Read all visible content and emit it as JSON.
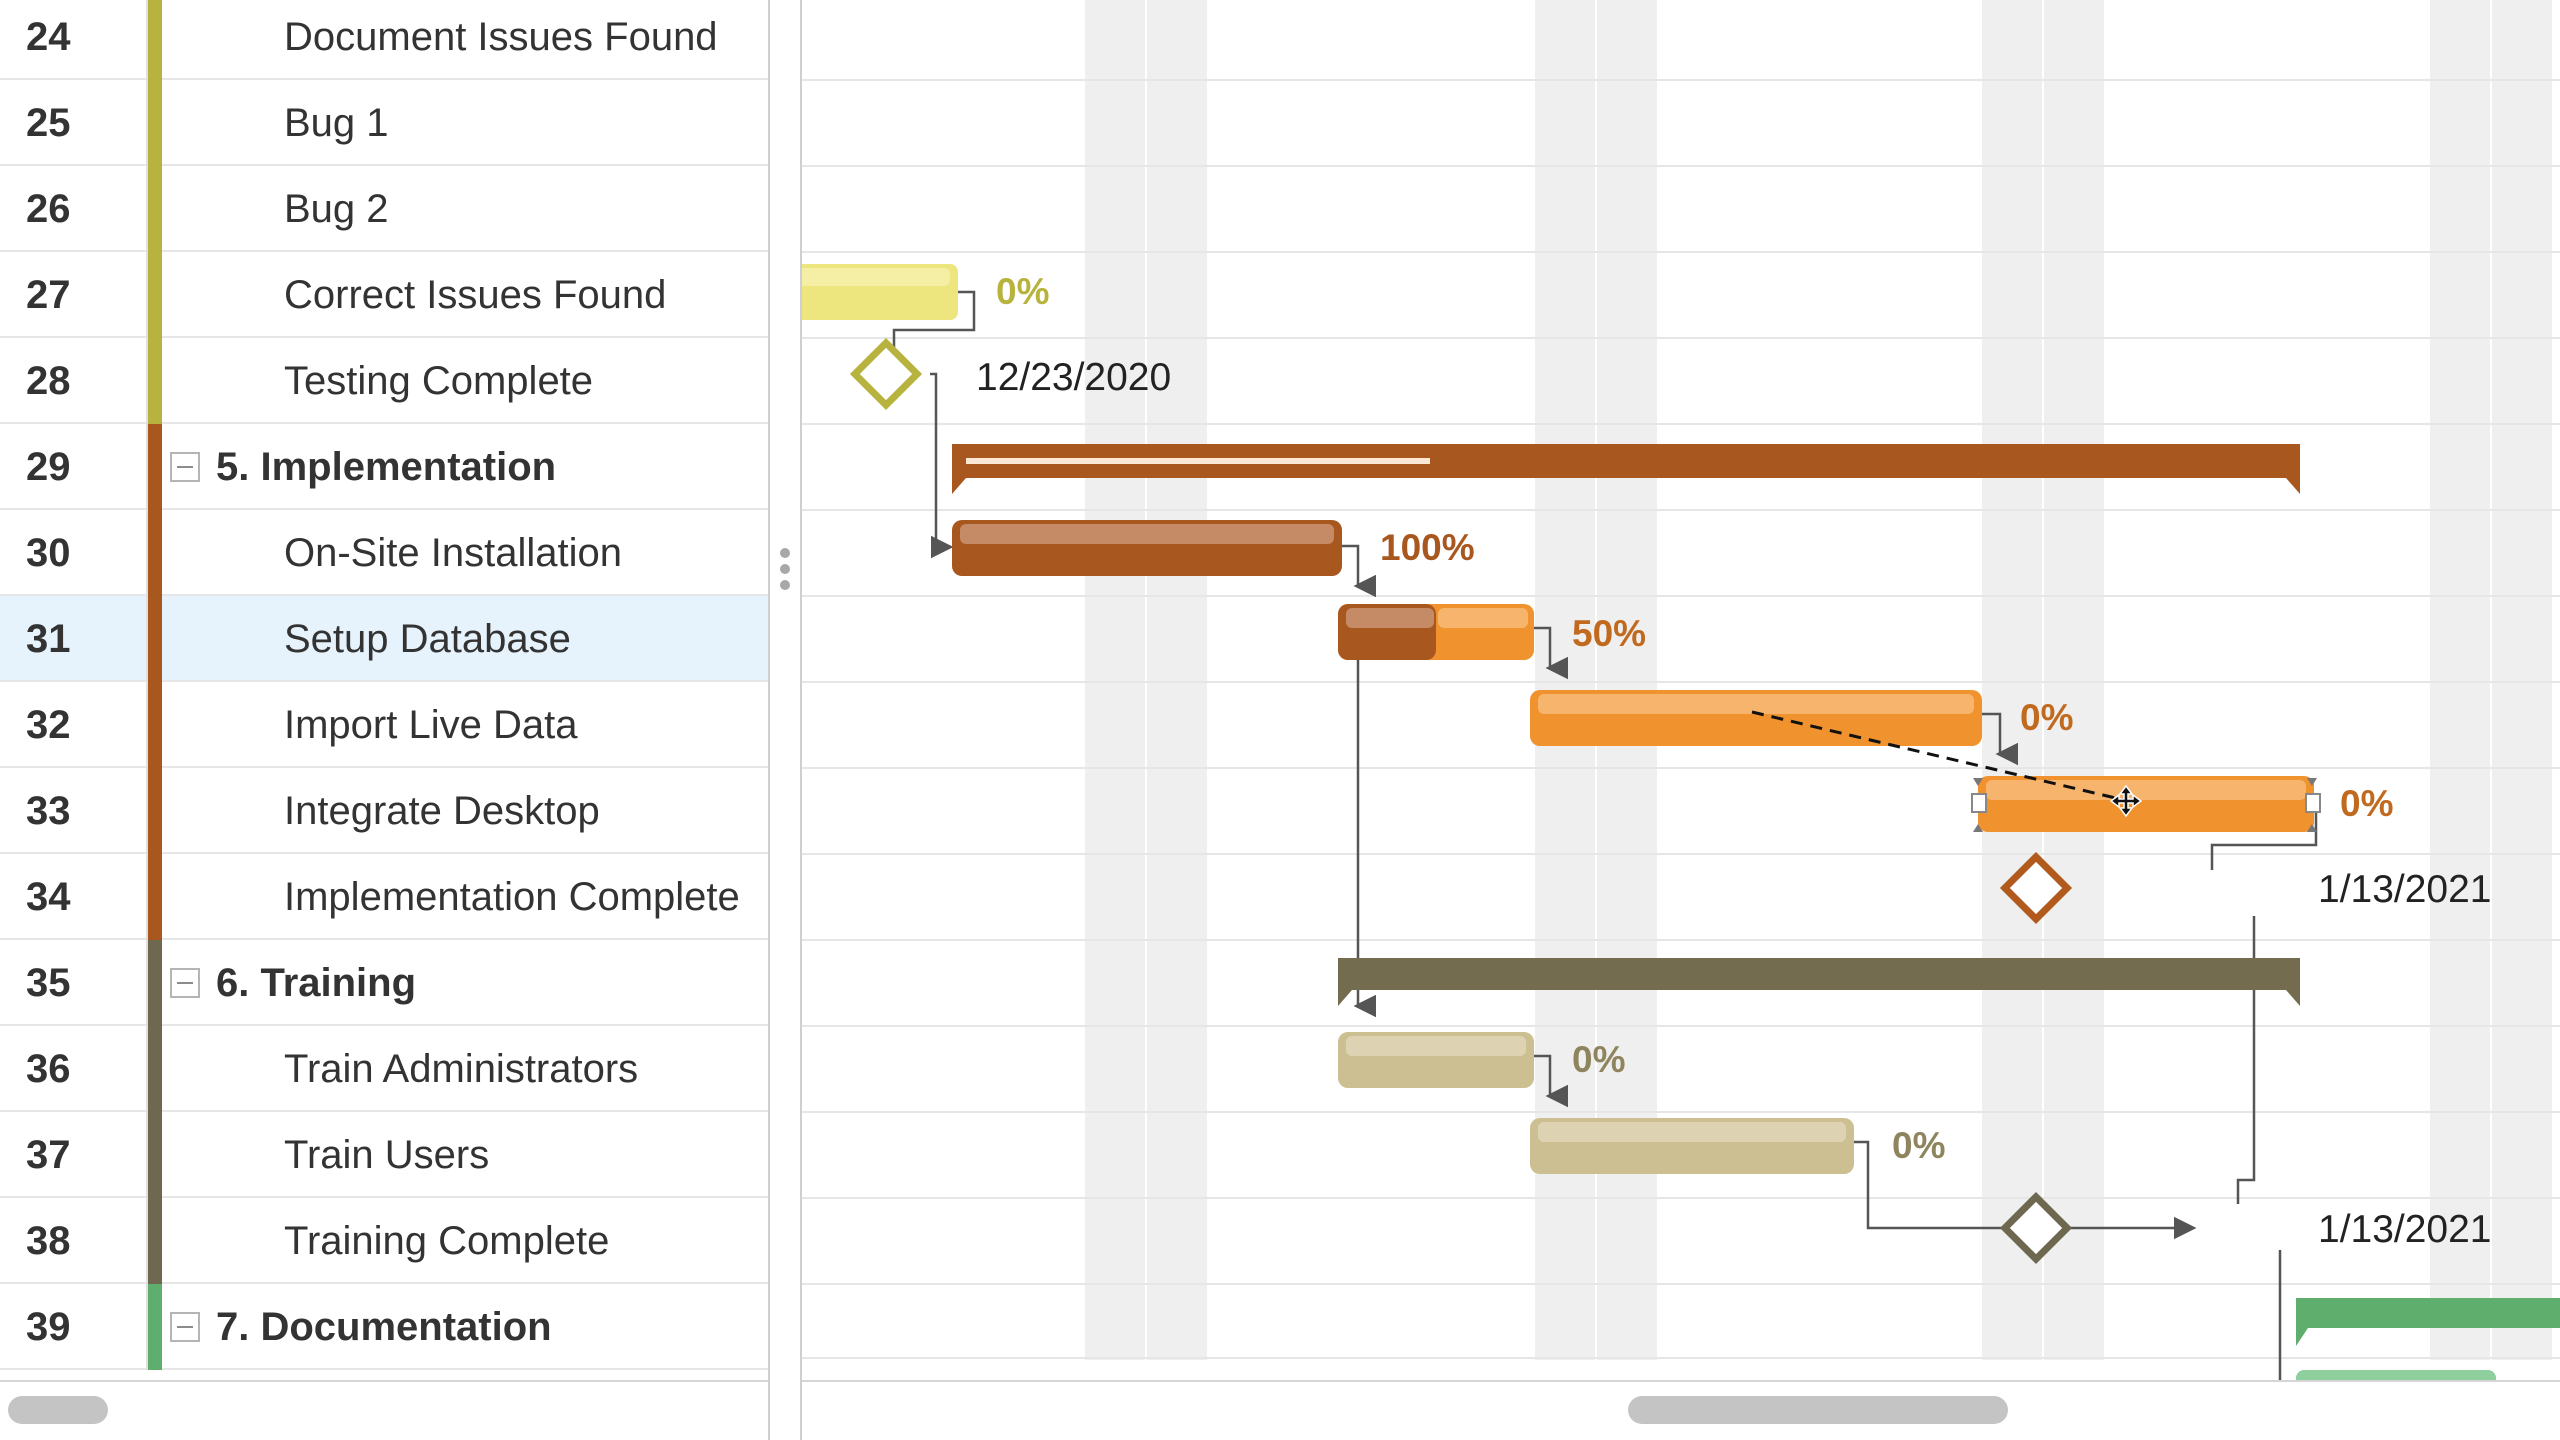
{
  "task_list": {
    "rows": [
      {
        "num": "24",
        "name": "Document Issues Found",
        "group": false,
        "color": "#b7b33e"
      },
      {
        "num": "25",
        "name": "Bug 1",
        "group": false,
        "color": "#b7b33e"
      },
      {
        "num": "26",
        "name": "Bug 2",
        "group": false,
        "color": "#b7b33e"
      },
      {
        "num": "27",
        "name": "Correct Issues Found",
        "group": false,
        "color": "#b7b33e"
      },
      {
        "num": "28",
        "name": "Testing Complete",
        "group": false,
        "color": "#b7b33e"
      },
      {
        "num": "29",
        "name": "5. Implementation",
        "group": true,
        "color": "#a8571f"
      },
      {
        "num": "30",
        "name": "On-Site Installation",
        "group": false,
        "color": "#a8571f"
      },
      {
        "num": "31",
        "name": "Setup Database",
        "group": false,
        "color": "#a8571f",
        "selected": true
      },
      {
        "num": "32",
        "name": "Import Live Data",
        "group": false,
        "color": "#a8571f"
      },
      {
        "num": "33",
        "name": "Integrate Desktop",
        "group": false,
        "color": "#a8571f"
      },
      {
        "num": "34",
        "name": "Implementation Complete",
        "group": false,
        "color": "#a8571f"
      },
      {
        "num": "35",
        "name": "6. Training",
        "group": true,
        "color": "#6e6850"
      },
      {
        "num": "36",
        "name": "Train Administrators",
        "group": false,
        "color": "#6e6850"
      },
      {
        "num": "37",
        "name": "Train Users",
        "group": false,
        "color": "#6e6850"
      },
      {
        "num": "38",
        "name": "Training Complete",
        "group": false,
        "color": "#6e6850"
      },
      {
        "num": "39",
        "name": "7. Documentation",
        "group": true,
        "color": "#5fae6e"
      }
    ]
  },
  "gantt": {
    "labels": {
      "correct_issues_pct": "0%",
      "testing_complete_date": "12/23/2020",
      "onsite_install_pct": "100%",
      "setup_db_pct": "50%",
      "import_live_pct": "0%",
      "integrate_desktop_pct": "0%",
      "impl_complete_date": "1/13/2021",
      "train_admin_pct": "0%",
      "train_users_pct": "0%",
      "training_complete_date": "1/13/2021"
    },
    "progress": {
      "onsite_install": 100,
      "setup_db": 50,
      "import_live": 0,
      "integrate_desktop": 0,
      "train_admin": 0,
      "train_users": 0
    },
    "colors": {
      "testing": "#ede67e",
      "implementation": "#a8571f",
      "impl_task": "#f0922d",
      "training": "#746c4f",
      "training_task": "#ccbf91",
      "documentation": "#5fae6e",
      "weekend_shade": "#efefef"
    },
    "icons": {
      "move_cursor": "move-cursor-icon",
      "milestone": "diamond-milestone-icon"
    }
  }
}
